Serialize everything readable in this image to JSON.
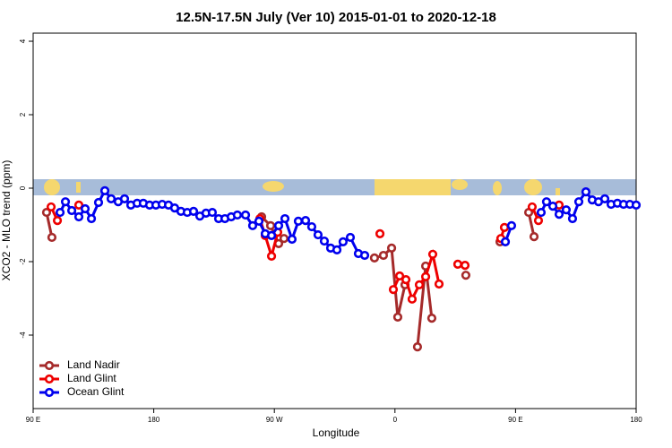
{
  "chart_data": {
    "type": "line",
    "title": "12.5N-17.5N July (Ver 10)   2015-01-01 to 2020-12-18",
    "x_label": "Longitude",
    "y_label": "XCO2 - MLO trend (ppm)",
    "xlim": [
      90,
      540
    ],
    "xticks": [
      {
        "value": 90,
        "label": "90 E"
      },
      180,
      {
        "value": 270,
        "label": "90 W"
      },
      {
        "value": 360,
        "label": "0"
      },
      {
        "value": 450,
        "label": "90 E"
      },
      {
        "value": 540,
        "label": "180"
      }
    ],
    "ylim": [
      -6,
      4.22
    ],
    "yticks": [
      4,
      2,
      0,
      -2,
      -4
    ],
    "legend": "bottom-left",
    "series": [
      {
        "name": "Land Nadir",
        "color": "#a52a2a",
        "x": [
          100,
          104,
          260.5,
          267.2,
          273.2,
          277.2,
          344.7,
          351.4,
          357.5,
          362.1,
          367.5,
          376.8,
          382.9,
          387.5,
          412.9,
          438.4,
          459.8,
          463.8
        ],
        "values": [
          -0.66,
          -1.34,
          -0.78,
          -1.02,
          -1.51,
          -1.37,
          -1.9,
          -1.83,
          -1.63,
          -3.51,
          -2.63,
          -4.32,
          -2.12,
          -3.54,
          -2.37,
          -1.46,
          -0.66,
          -1.32
        ]
      },
      {
        "name": "Land Glint",
        "color": "#ee0000",
        "x": [
          103.4,
          108.1,
          124.1,
          259.2,
          263.2,
          267.9,
          272.5,
          348.8,
          358.8,
          363.5,
          368.2,
          372.8,
          378.2,
          382.9,
          388.2,
          392.9,
          406.9,
          412.3,
          439,
          441.7,
          462.4,
          467.1,
          482.5
        ],
        "values": [
          -0.51,
          -0.88,
          -0.46,
          -0.83,
          -1.29,
          -1.85,
          -1.2,
          -1.24,
          -2.76,
          -2.39,
          -2.49,
          -3.02,
          -2.63,
          -2.41,
          -1.8,
          -2.61,
          -2.07,
          -2.1,
          -1.37,
          -1.07,
          -0.51,
          -0.88,
          -0.46
        ]
      },
      {
        "name": "Ocean Glint",
        "color": "#0000ee",
        "x": [
          110.1,
          114.1,
          118.8,
          124.1,
          128.8,
          133.5,
          138.8,
          143.5,
          148.2,
          153.5,
          158.2,
          162.9,
          167.6,
          172.2,
          176.9,
          181.6,
          186.3,
          191,
          195.6,
          200.3,
          205,
          209.7,
          214.4,
          219,
          223.7,
          228.4,
          233.1,
          237.8,
          242.4,
          248.5,
          253.8,
          258.5,
          263.2,
          267.9,
          273.2,
          277.9,
          283.2,
          287.9,
          293.3,
          297.9,
          302.6,
          307.3,
          312,
          316.7,
          321.3,
          326.7,
          332.7,
          337.4,
          442.4,
          447,
          469.1,
          473.1,
          477.8,
          482.5,
          487.8,
          492.5,
          497.2,
          502.5,
          507.2,
          511.9,
          516.6,
          521.3,
          526,
          530.6,
          535.3,
          540
        ],
        "values": [
          -0.66,
          -0.37,
          -0.61,
          -0.78,
          -0.56,
          -0.83,
          -0.39,
          -0.07,
          -0.29,
          -0.37,
          -0.29,
          -0.46,
          -0.41,
          -0.41,
          -0.46,
          -0.46,
          -0.44,
          -0.46,
          -0.54,
          -0.63,
          -0.66,
          -0.63,
          -0.76,
          -0.68,
          -0.66,
          -0.83,
          -0.83,
          -0.78,
          -0.73,
          -0.73,
          -1.02,
          -0.9,
          -1.24,
          -1.29,
          -1.02,
          -0.83,
          -1.39,
          -0.9,
          -0.88,
          -1.05,
          -1.27,
          -1.44,
          -1.63,
          -1.68,
          -1.46,
          -1.34,
          -1.78,
          -1.83,
          -1.46,
          -1.02,
          -0.66,
          -0.37,
          -0.49,
          -0.71,
          -0.59,
          -0.83,
          -0.37,
          -0.1,
          -0.32,
          -0.37,
          -0.29,
          -0.44,
          -0.41,
          -0.44,
          -0.44,
          -0.46
        ]
      }
    ]
  }
}
